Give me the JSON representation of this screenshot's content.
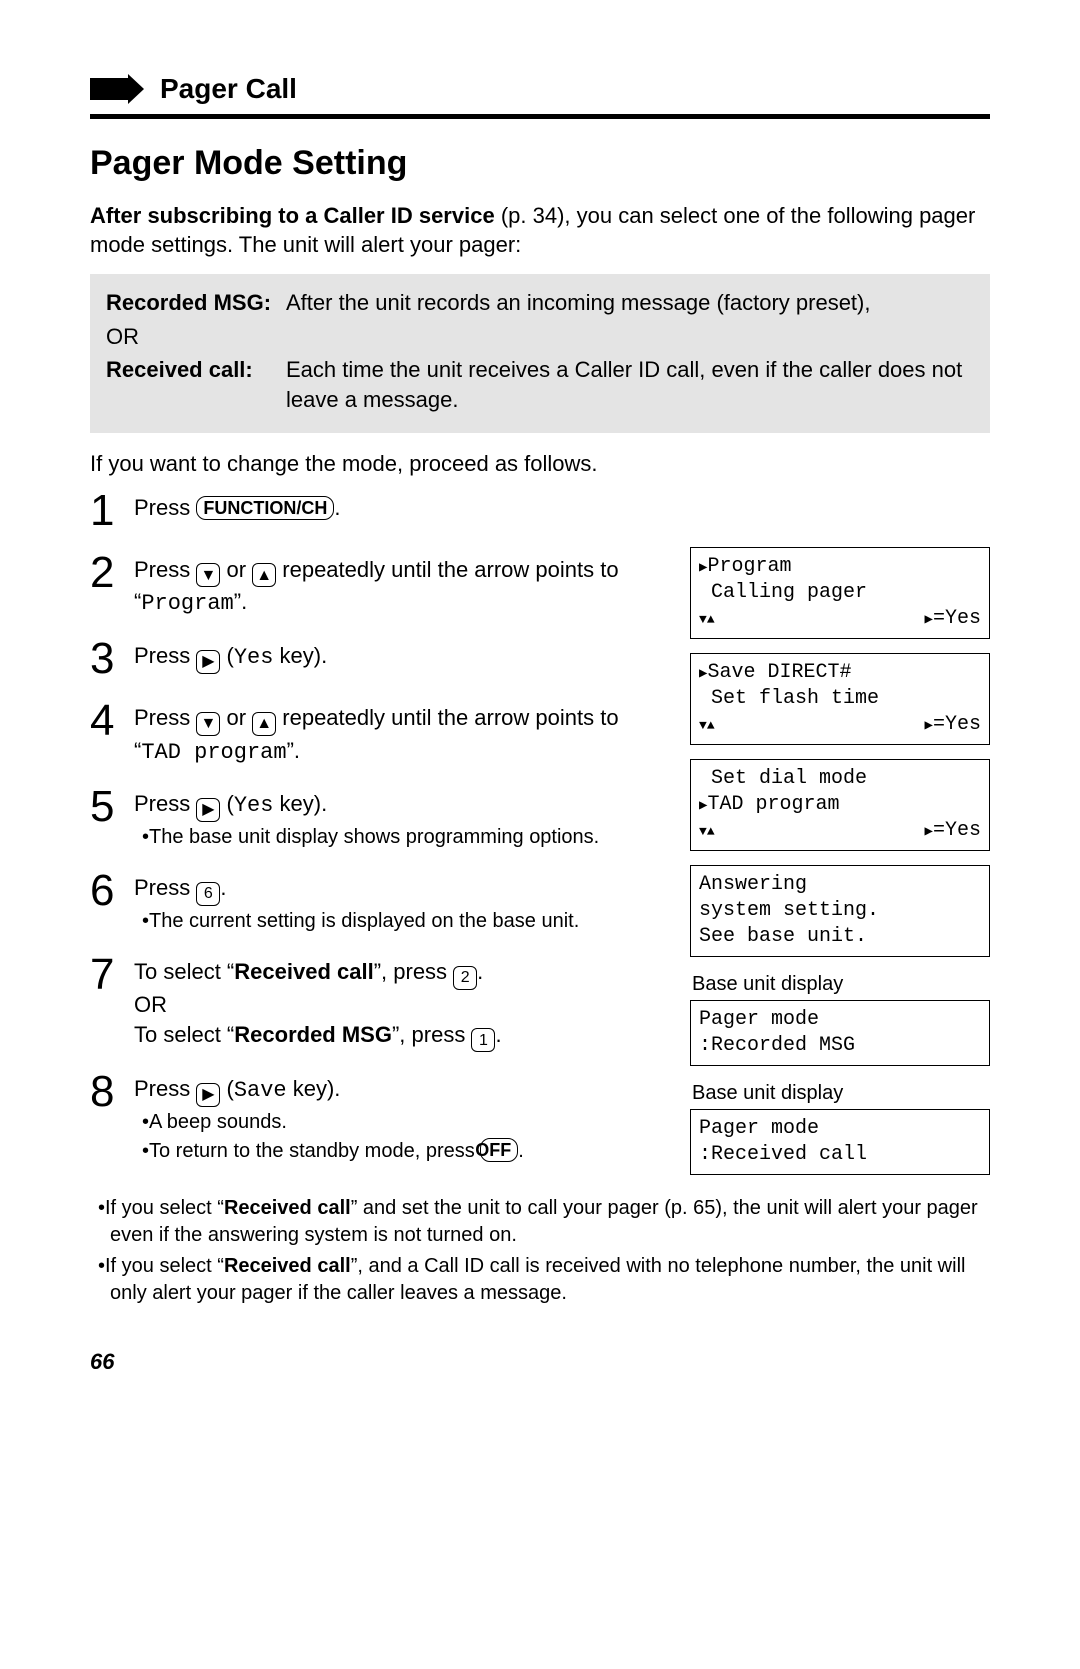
{
  "section": {
    "title": "Pager Call"
  },
  "page": {
    "title": "Pager Mode Setting",
    "intro_prefix_bold": "After subscribing to a Caller ID service",
    "intro_rest": " (p. 34), you can select one of the following pager mode settings. The unit will alert your pager:",
    "continue": "If you want to change the mode, proceed as follows.",
    "number": "66"
  },
  "graybox": {
    "rows": [
      {
        "label": "Recorded MSG:",
        "text": "After the unit records an incoming message (factory preset),"
      },
      {
        "label": "OR",
        "text": ""
      },
      {
        "label": "Received call:",
        "text": "Each time the unit receives a Caller ID call, even if the caller does not leave a message."
      }
    ]
  },
  "keys": {
    "function": "FUNCTION/CH",
    "off": "OFF",
    "six": "6",
    "two": "2",
    "one": "1"
  },
  "steps": {
    "s1": {
      "prefix": "Press "
    },
    "s2": {
      "prefix": "Press ",
      "mid": " or ",
      "suffix": " repeatedly until the arrow points to “",
      "mono": "Program",
      "end": "”."
    },
    "s3": {
      "prefix": "Press ",
      "paren_open": " (",
      "mono": "Yes",
      "paren_close": " key)."
    },
    "s4": {
      "prefix": "Press ",
      "mid": " or ",
      "suffix": " repeatedly until the arrow points to “",
      "mono": "TAD program",
      "end": "”."
    },
    "s5": {
      "prefix": "Press ",
      "paren_open": " (",
      "mono": "Yes",
      "paren_close": " key).",
      "bullet": "•The base unit display shows programming options."
    },
    "s6": {
      "prefix": "Press ",
      "bullet": "•The current setting is displayed on the base unit."
    },
    "s7": {
      "line1a": "To select “",
      "bold1": "Received call",
      "line1b": "”, press ",
      "or": "OR",
      "line2a": "To select “",
      "bold2": "Recorded MSG",
      "line2b": "”, press "
    },
    "s8": {
      "prefix": "Press ",
      "paren_open": " (",
      "mono": "Save",
      "paren_close": " key).",
      "bullet1": "•A beep sounds.",
      "bullet2a": "•To return to the standby mode, press "
    }
  },
  "displays": {
    "d2": {
      "l1": "Program",
      "l2": " Calling pager",
      "yes": "=Yes"
    },
    "d3": {
      "l1": "Save DIRECT#",
      "l2": " Set flash time",
      "yes": "=Yes"
    },
    "d4": {
      "l1": " Set dial mode",
      "l2": "TAD program",
      "yes": "=Yes"
    },
    "d5": {
      "l1": "Answering",
      "l2": "system setting.",
      "l3": "See base unit."
    },
    "cap6": "Base unit display",
    "d6": {
      "l1": "Pager mode",
      "l2": ":Recorded MSG"
    },
    "cap7": "Base unit display",
    "d7": {
      "l1": "Pager mode",
      "l2": ":Received call"
    }
  },
  "notes": {
    "n1a": "•If you select “",
    "n1bold": "Received call",
    "n1b": "” and set the unit to call your pager (p. 65), the unit will alert your pager even if the answering system is not turned on.",
    "n2a": "•If you select “",
    "n2bold": "Received call",
    "n2b": "”, and a Call ID call is received with no telephone number, the unit will only alert your pager if the caller leaves a message."
  },
  "colors": {
    "text": "#000000",
    "bg": "#ffffff",
    "gray": "#e4e4e4"
  }
}
